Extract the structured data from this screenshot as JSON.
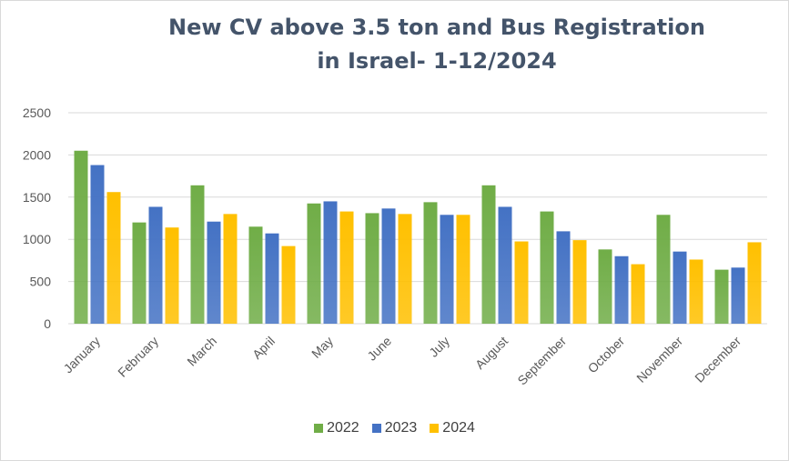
{
  "chart_data": {
    "type": "bar",
    "title_line1": "New CV above 3.5 ton and Bus Registration",
    "title_line2": "in Israel- 1-12/2024",
    "categories": [
      "January",
      "February",
      "March",
      "April",
      "May",
      "June",
      "July",
      "August",
      "September",
      "October",
      "November",
      "December"
    ],
    "series": [
      {
        "name": "2022",
        "color": "#70ad47",
        "values": [
          2050,
          1200,
          1640,
          1150,
          1425,
          1310,
          1440,
          1640,
          1330,
          880,
          1290,
          640
        ]
      },
      {
        "name": "2023",
        "color": "#4472c4",
        "values": [
          1880,
          1385,
          1210,
          1070,
          1450,
          1365,
          1290,
          1385,
          1095,
          800,
          855,
          665
        ]
      },
      {
        "name": "2024",
        "color": "#ffc000",
        "values": [
          1560,
          1140,
          1300,
          920,
          1330,
          1300,
          1290,
          975,
          990,
          705,
          760,
          965
        ]
      }
    ],
    "ylim": [
      0,
      2500
    ],
    "yticks": [
      0,
      500,
      1000,
      1500,
      2000,
      2500
    ],
    "grid": true,
    "legend_position": "bottom"
  }
}
